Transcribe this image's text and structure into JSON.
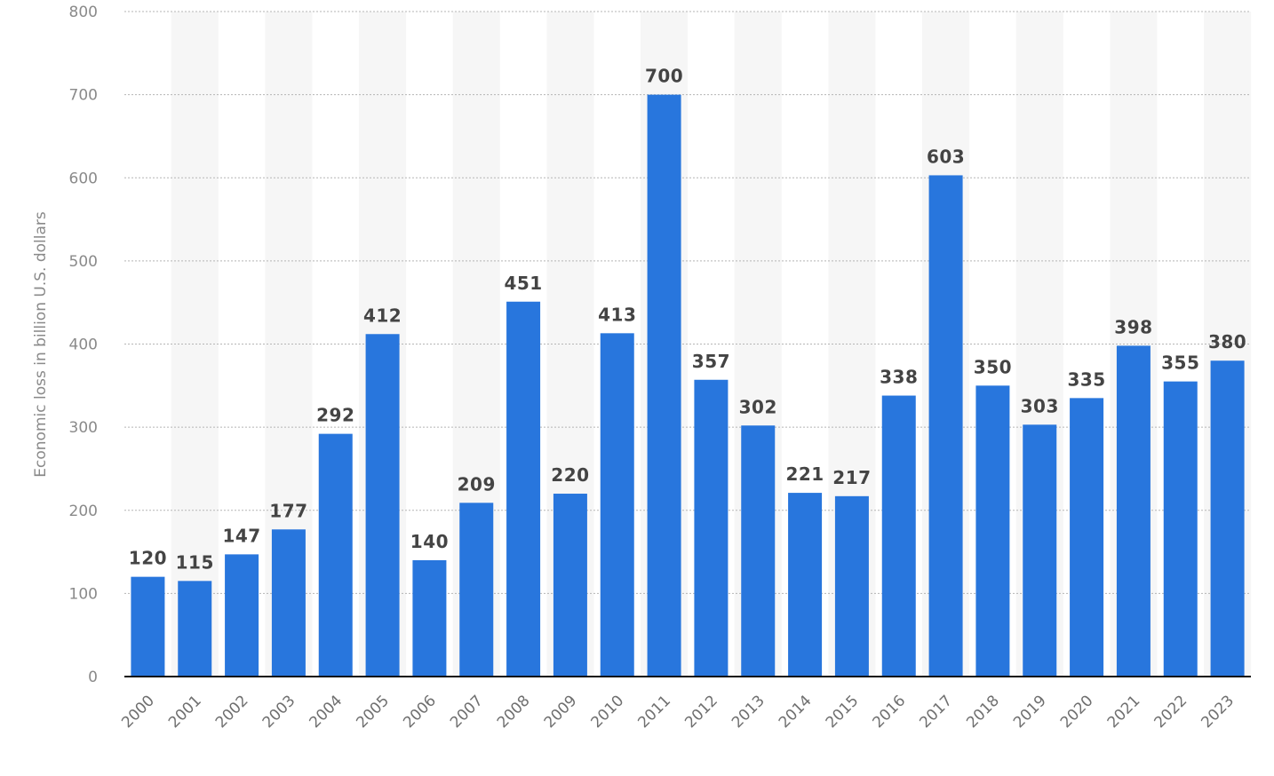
{
  "chart_data": {
    "type": "bar",
    "title": "",
    "xlabel": "",
    "ylabel": "Economic loss in billion U.S. dollars",
    "categories": [
      "2000",
      "2001",
      "2002",
      "2003",
      "2004",
      "2005",
      "2006",
      "2007",
      "2008",
      "2009",
      "2010",
      "2011",
      "2012",
      "2013",
      "2014",
      "2015",
      "2016",
      "2017",
      "2018",
      "2019",
      "2020",
      "2021",
      "2022",
      "2023"
    ],
    "values": [
      120,
      115,
      147,
      177,
      292,
      412,
      140,
      209,
      451,
      220,
      413,
      700,
      357,
      302,
      221,
      217,
      338,
      603,
      350,
      303,
      335,
      398,
      355,
      380
    ],
    "ylim": [
      0,
      800
    ],
    "yticks": [
      0,
      100,
      200,
      300,
      400,
      500,
      600,
      700,
      800
    ],
    "grid": true,
    "legend": "none",
    "bar_color": "#2876dd",
    "alternate_band_color": "#f6f6f6"
  }
}
